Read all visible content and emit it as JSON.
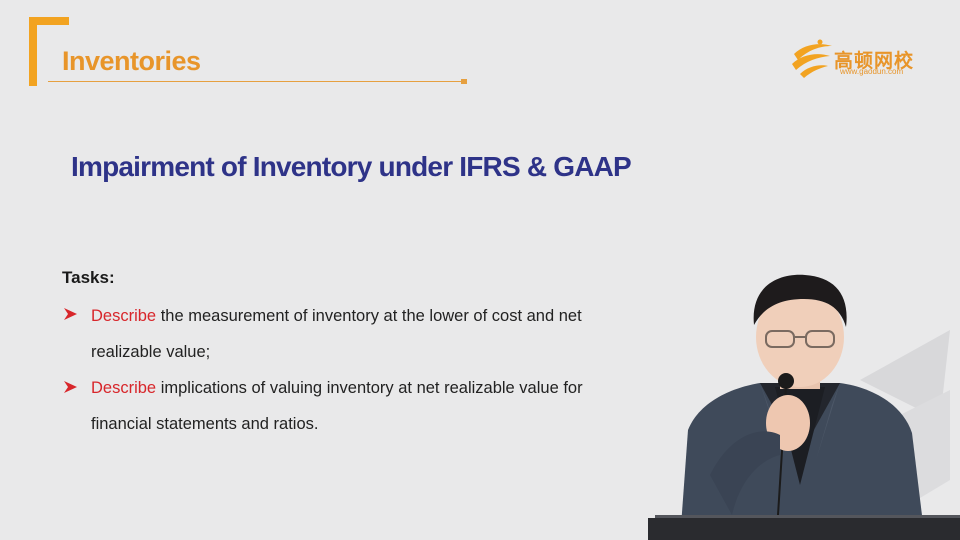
{
  "header": {
    "section_title": "Inventories"
  },
  "logo": {
    "name": "高顿网校",
    "url": "www.gaodun.com"
  },
  "slide": {
    "heading": "Impairment of Inventory under IFRS & GAAP",
    "tasks_label": "Tasks:",
    "tasks": [
      {
        "verb": "Describe",
        "line1": " the measurement of inventory at the lower of cost and net",
        "line2": "realizable value;"
      },
      {
        "verb": "Describe",
        "line1": " implications of valuing inventory at net realizable value for",
        "line2": "financial statements and ratios."
      }
    ]
  },
  "colors": {
    "accent_orange": "#f2a321",
    "heading_navy": "#2e3388",
    "highlight_red": "#d8262b",
    "background": "#e9e9ea"
  }
}
